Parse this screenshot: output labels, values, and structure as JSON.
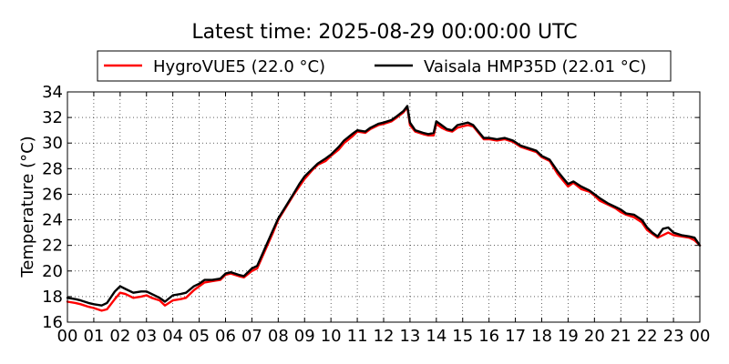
{
  "chart_data": {
    "type": "line",
    "title": "Latest time: 2025-08-29 00:00:00 UTC",
    "xlabel": "",
    "ylabel": "Temperature (°C)",
    "xlim": [
      0,
      24
    ],
    "ylim": [
      16,
      34
    ],
    "x_ticks": [
      0,
      1,
      2,
      3,
      4,
      5,
      6,
      7,
      8,
      9,
      10,
      11,
      12,
      13,
      14,
      15,
      16,
      17,
      18,
      19,
      20,
      21,
      22,
      23,
      24
    ],
    "x_tick_labels": [
      "00",
      "01",
      "02",
      "03",
      "04",
      "05",
      "06",
      "07",
      "08",
      "09",
      "10",
      "11",
      "12",
      "13",
      "14",
      "15",
      "16",
      "17",
      "18",
      "19",
      "20",
      "21",
      "22",
      "23",
      "00"
    ],
    "y_ticks": [
      16,
      18,
      20,
      22,
      24,
      26,
      28,
      30,
      32,
      34
    ],
    "grid": true,
    "legend_position": "top-center",
    "series": [
      {
        "name": "HygroVUE5 (22.0 °C)",
        "color": "#ff0000",
        "x": [
          0,
          0.3,
          0.5,
          0.8,
          1.0,
          1.3,
          1.5,
          1.8,
          2.0,
          2.2,
          2.5,
          2.8,
          3.0,
          3.2,
          3.5,
          3.7,
          4.0,
          4.3,
          4.5,
          4.8,
          5.0,
          5.2,
          5.5,
          5.8,
          6.0,
          6.2,
          6.5,
          6.7,
          7.0,
          7.2,
          7.5,
          7.8,
          8.0,
          8.3,
          8.6,
          8.8,
          9.0,
          9.3,
          9.5,
          9.8,
          10.0,
          10.3,
          10.5,
          10.8,
          11.0,
          11.3,
          11.5,
          11.8,
          12.0,
          12.3,
          12.5,
          12.75,
          12.9,
          13.0,
          13.2,
          13.5,
          13.7,
          13.9,
          14.0,
          14.2,
          14.4,
          14.6,
          14.8,
          15.0,
          15.2,
          15.4,
          15.6,
          15.8,
          16.0,
          16.3,
          16.6,
          16.9,
          17.2,
          17.5,
          17.8,
          18.0,
          18.3,
          18.6,
          18.8,
          19.0,
          19.2,
          19.5,
          19.8,
          20.0,
          20.2,
          20.5,
          20.8,
          21.0,
          21.2,
          21.5,
          21.8,
          22.0,
          22.2,
          22.4,
          22.6,
          22.8,
          23.0,
          23.3,
          23.6,
          23.8,
          24.0
        ],
        "y": [
          17.6,
          17.5,
          17.4,
          17.2,
          17.1,
          16.9,
          17.0,
          17.8,
          18.3,
          18.2,
          17.9,
          18.0,
          18.1,
          17.9,
          17.7,
          17.3,
          17.7,
          17.8,
          17.9,
          18.5,
          18.8,
          19.1,
          19.2,
          19.3,
          19.7,
          19.8,
          19.6,
          19.5,
          20.0,
          20.2,
          21.6,
          23.0,
          24.0,
          25.0,
          26.0,
          26.6,
          27.2,
          27.9,
          28.3,
          28.6,
          29.0,
          29.5,
          30.0,
          30.5,
          30.9,
          30.8,
          31.1,
          31.4,
          31.5,
          31.7,
          32.0,
          32.4,
          32.8,
          31.4,
          30.9,
          30.7,
          30.6,
          30.6,
          31.5,
          31.2,
          31.0,
          30.9,
          31.2,
          31.3,
          31.4,
          31.3,
          30.8,
          30.3,
          30.3,
          30.2,
          30.3,
          30.1,
          29.7,
          29.5,
          29.3,
          28.9,
          28.6,
          27.6,
          27.1,
          26.6,
          26.9,
          26.4,
          26.2,
          25.9,
          25.5,
          25.2,
          24.9,
          24.6,
          24.4,
          24.2,
          23.8,
          23.2,
          22.9,
          22.6,
          22.8,
          23.0,
          22.8,
          22.7,
          22.6,
          22.4,
          22.0
        ]
      },
      {
        "name": "Vaisala HMP35D (22.01 °C)",
        "color": "#000000",
        "x": [
          0,
          0.3,
          0.5,
          0.8,
          1.0,
          1.3,
          1.5,
          1.8,
          2.0,
          2.2,
          2.5,
          2.8,
          3.0,
          3.2,
          3.5,
          3.7,
          4.0,
          4.3,
          4.5,
          4.8,
          5.0,
          5.2,
          5.5,
          5.8,
          6.0,
          6.2,
          6.5,
          6.7,
          7.0,
          7.2,
          7.5,
          7.8,
          8.0,
          8.3,
          8.6,
          8.8,
          9.0,
          9.3,
          9.5,
          9.8,
          10.0,
          10.3,
          10.5,
          10.8,
          11.0,
          11.3,
          11.5,
          11.8,
          12.0,
          12.3,
          12.5,
          12.75,
          12.9,
          13.0,
          13.2,
          13.5,
          13.7,
          13.9,
          14.0,
          14.2,
          14.4,
          14.6,
          14.8,
          15.0,
          15.2,
          15.4,
          15.6,
          15.8,
          16.0,
          16.3,
          16.6,
          16.9,
          17.2,
          17.5,
          17.8,
          18.0,
          18.3,
          18.6,
          18.8,
          19.0,
          19.2,
          19.5,
          19.8,
          20.0,
          20.2,
          20.5,
          20.8,
          21.0,
          21.2,
          21.5,
          21.8,
          22.0,
          22.2,
          22.4,
          22.6,
          22.8,
          23.0,
          23.3,
          23.6,
          23.8,
          24.0
        ],
        "y": [
          17.9,
          17.8,
          17.7,
          17.5,
          17.4,
          17.3,
          17.5,
          18.4,
          18.8,
          18.6,
          18.3,
          18.4,
          18.4,
          18.2,
          17.9,
          17.6,
          18.1,
          18.2,
          18.3,
          18.8,
          19.0,
          19.3,
          19.3,
          19.4,
          19.8,
          19.9,
          19.7,
          19.6,
          20.2,
          20.4,
          21.8,
          23.2,
          24.1,
          25.1,
          26.1,
          26.8,
          27.4,
          28.0,
          28.4,
          28.8,
          29.1,
          29.7,
          30.2,
          30.7,
          31.0,
          30.9,
          31.2,
          31.5,
          31.6,
          31.8,
          32.1,
          32.5,
          32.9,
          31.6,
          31.0,
          30.8,
          30.7,
          30.8,
          31.7,
          31.4,
          31.1,
          31.0,
          31.4,
          31.5,
          31.6,
          31.4,
          30.9,
          30.4,
          30.4,
          30.3,
          30.4,
          30.2,
          29.8,
          29.6,
          29.4,
          29.0,
          28.7,
          27.8,
          27.3,
          26.8,
          27.0,
          26.6,
          26.3,
          26.0,
          25.7,
          25.3,
          25.0,
          24.8,
          24.5,
          24.4,
          24.0,
          23.4,
          23.0,
          22.7,
          23.3,
          23.4,
          23.0,
          22.8,
          22.7,
          22.6,
          22.0
        ]
      }
    ]
  }
}
